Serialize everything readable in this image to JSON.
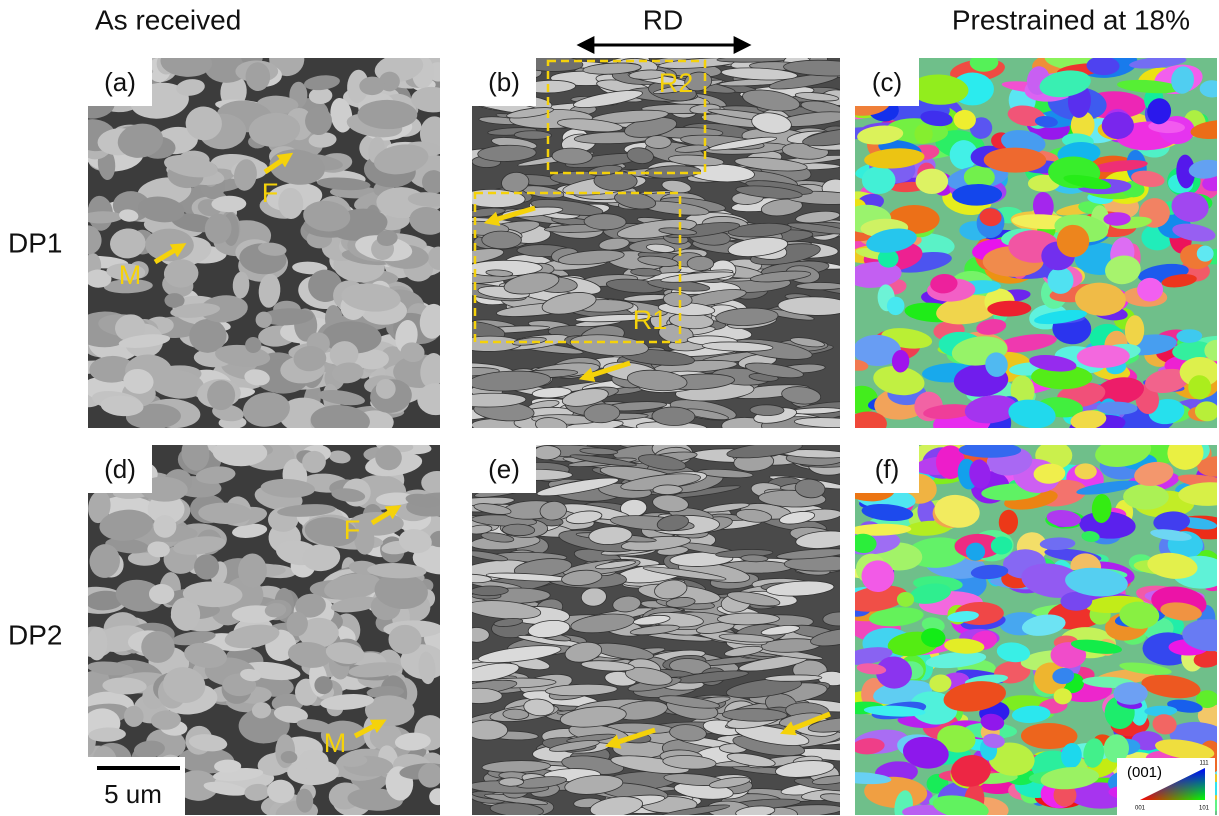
{
  "header": {
    "left": "As received",
    "direction": "RD",
    "right": "Prestrained at 18%"
  },
  "rows": [
    "DP1",
    "DP2"
  ],
  "panels": [
    {
      "label": "(a)",
      "notes": [
        "F",
        "M"
      ]
    },
    {
      "label": "(b)",
      "notes": [
        "R2",
        "R1"
      ]
    },
    {
      "label": "(c)"
    },
    {
      "label": "(d)",
      "notes": [
        "F",
        "M"
      ]
    },
    {
      "label": "(e)"
    },
    {
      "label": "(f)"
    }
  ],
  "scale_bar": "5 um",
  "legend": {
    "title": "(001)",
    "corners": [
      "111",
      "001",
      "101"
    ]
  }
}
